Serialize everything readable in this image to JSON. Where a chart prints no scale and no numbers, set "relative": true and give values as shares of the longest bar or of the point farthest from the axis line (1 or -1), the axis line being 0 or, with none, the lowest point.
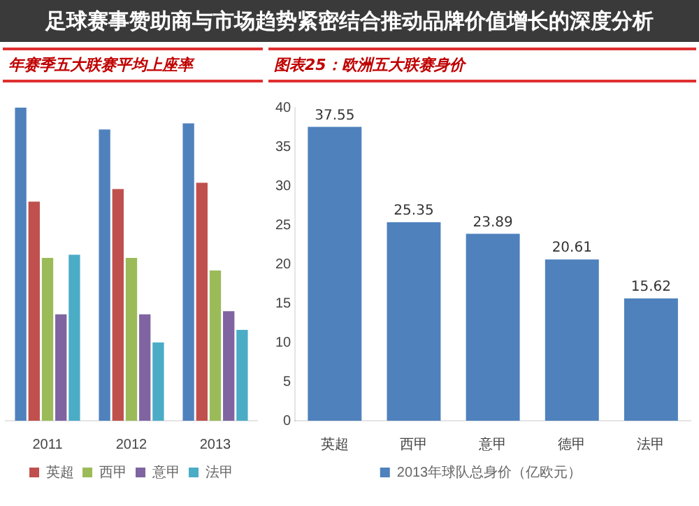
{
  "chart_data": [
    {
      "type": "bar",
      "title": "年赛季五大联赛平均上座率",
      "annotations": [
        "足球赛事赞助商与市场趋势紧密结合推动品牌价值增长的深度分析"
      ],
      "relative": true,
      "categories": [
        "2011",
        "2012",
        "2013"
      ],
      "legend": "bottom",
      "series": [
        {
          "color": "#4f81bd",
          "values": [
            1,
            0.93,
            0.95
          ]
        },
        {
          "name": "英超",
          "color": "#c0504d",
          "values": [
            0.7,
            0.74,
            0.76
          ]
        },
        {
          "name": "西甲",
          "color": "#9bbb59",
          "values": [
            0.52,
            0.52,
            0.48
          ]
        },
        {
          "name": "意甲",
          "color": "#8064a2",
          "values": [
            0.34,
            0.34,
            0.35
          ]
        },
        {
          "name": "法甲",
          "color": "#4bacc6",
          "values": [
            0.53,
            0.25,
            0.29
          ]
        }
      ]
    },
    {
      "type": "bar",
      "title": "图表25：欧洲五大联赛身价",
      "categories": [
        "英超",
        "西甲",
        "意甲",
        "德甲",
        "法甲"
      ],
      "legend": "bottom",
      "data_labels": true,
      "ylim": [
        0,
        40
      ],
      "yticks": [
        0,
        5,
        10,
        15,
        20,
        25,
        30,
        35,
        40
      ],
      "grid": false,
      "series": [
        {
          "name": "2013年球队总身价（亿欧元）",
          "color": "#4f81bd",
          "values": [
            37.55,
            25.35,
            23.89,
            20.61,
            15.62
          ]
        }
      ]
    }
  ]
}
